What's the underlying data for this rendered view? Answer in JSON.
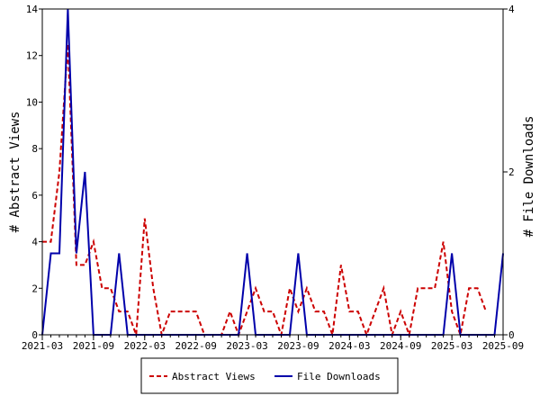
{
  "chart_data": {
    "type": "line",
    "title": "",
    "ylabel_left": "# Abstract Views",
    "ylabel_right": "# File Downloads",
    "ylim_left": [
      0,
      14
    ],
    "ylim_right": [
      0,
      4
    ],
    "yticks_left": [
      "0",
      "2",
      "4",
      "6",
      "8",
      "10",
      "12",
      "14"
    ],
    "yticks_right": [
      "0",
      "2",
      "4"
    ],
    "x_start": "2021-03",
    "x_end": "2025-09",
    "xticks": [
      "2021-03",
      "2021-09",
      "2022-03",
      "2022-09",
      "2023-03",
      "2023-09",
      "2024-03",
      "2024-09",
      "2025-03",
      "2025-09"
    ],
    "legend_position": "bottom-center",
    "grid": false,
    "colors": {
      "views": "#cc0000",
      "downloads": "#0000aa"
    },
    "series": [
      {
        "name": "Abstract Views",
        "axis": "left",
        "style": "dashed",
        "points": [
          [
            "2021-03",
            4
          ],
          [
            "2021-04",
            4
          ],
          [
            "2021-05",
            7
          ],
          [
            "2021-06",
            12.5
          ],
          [
            "2021-07",
            3
          ],
          [
            "2021-08",
            3
          ],
          [
            "2021-09",
            4
          ],
          [
            "2021-10",
            2
          ],
          [
            "2021-11",
            2
          ],
          [
            "2021-12",
            1
          ],
          [
            "2022-01",
            1
          ],
          [
            "2022-02",
            0
          ],
          [
            "2022-03",
            5
          ],
          [
            "2022-04",
            2
          ],
          [
            "2022-05",
            0
          ],
          [
            "2022-06",
            1
          ],
          [
            "2022-07",
            1
          ],
          [
            "2022-08",
            1
          ],
          [
            "2022-09",
            1
          ],
          [
            "2022-10",
            0
          ],
          [
            "2022-11",
            0
          ],
          [
            "2022-12",
            0
          ],
          [
            "2023-01",
            1
          ],
          [
            "2023-02",
            0
          ],
          [
            "2023-03",
            1
          ],
          [
            "2023-04",
            2
          ],
          [
            "2023-05",
            1
          ],
          [
            "2023-06",
            1
          ],
          [
            "2023-07",
            0
          ],
          [
            "2023-08",
            2
          ],
          [
            "2023-09",
            1
          ],
          [
            "2023-10",
            2
          ],
          [
            "2023-11",
            1
          ],
          [
            "2023-12",
            1
          ],
          [
            "2024-01",
            0
          ],
          [
            "2024-02",
            3
          ],
          [
            "2024-03",
            1
          ],
          [
            "2024-04",
            1
          ],
          [
            "2024-05",
            0
          ],
          [
            "2024-06",
            1
          ],
          [
            "2024-07",
            2
          ],
          [
            "2024-08",
            0
          ],
          [
            "2024-09",
            1
          ],
          [
            "2024-10",
            0
          ],
          [
            "2024-11",
            2
          ],
          [
            "2024-12",
            2
          ],
          [
            "2025-01",
            2
          ],
          [
            "2025-02",
            4
          ],
          [
            "2025-03",
            1
          ],
          [
            "2025-04",
            0
          ],
          [
            "2025-05",
            2
          ],
          [
            "2025-06",
            2
          ],
          [
            "2025-07",
            1
          ]
        ]
      },
      {
        "name": "File Downloads",
        "axis": "right",
        "style": "solid",
        "points": [
          [
            "2021-03",
            0
          ],
          [
            "2021-04",
            1
          ],
          [
            "2021-05",
            1
          ],
          [
            "2021-06",
            4
          ],
          [
            "2021-07",
            1
          ],
          [
            "2021-08",
            2
          ],
          [
            "2021-09",
            0
          ],
          [
            "2021-10",
            0
          ],
          [
            "2021-11",
            0
          ],
          [
            "2021-12",
            1
          ],
          [
            "2022-01",
            0
          ],
          [
            "2022-02",
            0
          ],
          [
            "2022-03",
            0
          ],
          [
            "2022-04",
            0
          ],
          [
            "2022-05",
            0
          ],
          [
            "2022-06",
            0
          ],
          [
            "2022-07",
            0
          ],
          [
            "2022-08",
            0
          ],
          [
            "2022-09",
            0
          ],
          [
            "2022-10",
            0
          ],
          [
            "2022-11",
            0
          ],
          [
            "2022-12",
            0
          ],
          [
            "2023-01",
            0
          ],
          [
            "2023-02",
            0
          ],
          [
            "2023-03",
            1
          ],
          [
            "2023-04",
            0
          ],
          [
            "2023-05",
            0
          ],
          [
            "2023-06",
            0
          ],
          [
            "2023-07",
            0
          ],
          [
            "2023-08",
            0
          ],
          [
            "2023-09",
            1
          ],
          [
            "2023-10",
            0
          ],
          [
            "2023-11",
            0
          ],
          [
            "2023-12",
            0
          ],
          [
            "2024-01",
            0
          ],
          [
            "2024-02",
            0
          ],
          [
            "2024-03",
            0
          ],
          [
            "2024-04",
            0
          ],
          [
            "2024-05",
            0
          ],
          [
            "2024-06",
            0
          ],
          [
            "2024-07",
            0
          ],
          [
            "2024-08",
            0
          ],
          [
            "2024-09",
            0
          ],
          [
            "2024-10",
            0
          ],
          [
            "2024-11",
            0
          ],
          [
            "2024-12",
            0
          ],
          [
            "2025-01",
            0
          ],
          [
            "2025-02",
            0
          ],
          [
            "2025-03",
            1
          ],
          [
            "2025-04",
            0
          ],
          [
            "2025-05",
            0
          ],
          [
            "2025-06",
            0
          ],
          [
            "2025-07",
            0
          ],
          [
            "2025-08",
            0
          ],
          [
            "2025-09",
            1
          ]
        ]
      }
    ]
  }
}
